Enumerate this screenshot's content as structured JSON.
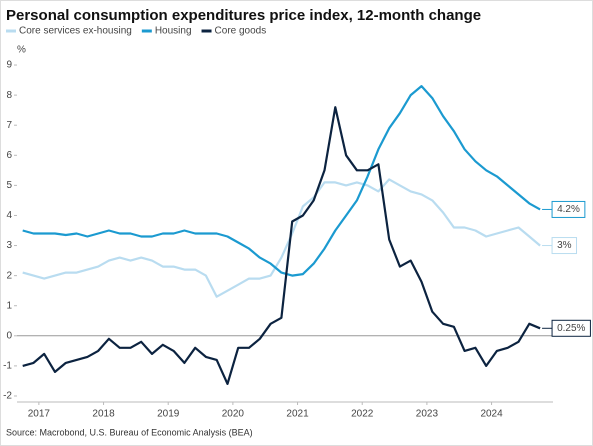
{
  "chart_data": {
    "type": "line",
    "title": "Personal consumption expenditures price index, 12-month change",
    "y_label": "%",
    "source": "Source: Macrobond, U.S. Bureau of Economic Analysis (BEA)",
    "x": [
      2016.75,
      2016.917,
      2017.083,
      2017.25,
      2017.417,
      2017.583,
      2017.75,
      2017.917,
      2018.083,
      2018.25,
      2018.417,
      2018.583,
      2018.75,
      2018.917,
      2019.083,
      2019.25,
      2019.417,
      2019.583,
      2019.75,
      2019.917,
      2020.083,
      2020.25,
      2020.417,
      2020.583,
      2020.75,
      2020.917,
      2021.083,
      2021.25,
      2021.417,
      2021.583,
      2021.75,
      2021.917,
      2022.083,
      2022.25,
      2022.417,
      2022.583,
      2022.75,
      2022.917,
      2023.083,
      2023.25,
      2023.417,
      2023.583,
      2023.75,
      2023.917,
      2024.083,
      2024.25,
      2024.417,
      2024.583,
      2024.75
    ],
    "series": [
      {
        "name": "Core services ex-housing",
        "color": "#b9dcf0",
        "values": [
          2.1,
          2.0,
          1.9,
          2.0,
          2.1,
          2.1,
          2.2,
          2.3,
          2.5,
          2.6,
          2.5,
          2.6,
          2.5,
          2.3,
          2.3,
          2.2,
          2.2,
          2.0,
          1.3,
          1.5,
          1.7,
          1.9,
          1.9,
          2.0,
          2.6,
          3.4,
          4.3,
          4.6,
          5.1,
          5.1,
          5.0,
          5.1,
          5.0,
          4.8,
          5.2,
          5.0,
          4.8,
          4.7,
          4.5,
          4.1,
          3.6,
          3.6,
          3.5,
          3.3,
          3.4,
          3.5,
          3.6,
          3.3,
          3
        ],
        "value_labels": [
          null,
          null,
          null,
          null,
          null,
          null,
          null,
          null,
          null,
          null,
          null,
          null,
          null,
          null,
          null,
          null,
          null,
          null,
          null,
          null,
          null,
          null,
          null,
          null,
          null,
          null,
          null,
          null,
          null,
          null,
          null,
          null,
          null,
          null,
          null,
          null,
          null,
          null,
          null,
          null,
          null,
          null,
          null,
          null,
          null,
          null,
          null,
          null,
          "3%"
        ]
      },
      {
        "name": "Housing",
        "color": "#1b9ad0",
        "values": [
          3.5,
          3.4,
          3.4,
          3.4,
          3.35,
          3.4,
          3.3,
          3.4,
          3.5,
          3.4,
          3.4,
          3.3,
          3.3,
          3.4,
          3.4,
          3.5,
          3.4,
          3.4,
          3.4,
          3.3,
          3.1,
          2.9,
          2.6,
          2.4,
          2.1,
          2.0,
          2.05,
          2.4,
          2.9,
          3.5,
          4.0,
          4.5,
          5.3,
          6.2,
          6.9,
          7.4,
          8.0,
          8.3,
          7.9,
          7.3,
          6.8,
          6.2,
          5.8,
          5.5,
          5.3,
          5.0,
          4.7,
          4.4,
          4.2
        ],
        "value_labels": [
          null,
          null,
          null,
          null,
          null,
          null,
          null,
          null,
          null,
          null,
          null,
          null,
          null,
          null,
          null,
          null,
          null,
          null,
          null,
          null,
          null,
          null,
          null,
          null,
          null,
          null,
          null,
          null,
          null,
          null,
          null,
          null,
          null,
          null,
          null,
          null,
          null,
          null,
          null,
          null,
          null,
          null,
          null,
          null,
          null,
          null,
          null,
          null,
          "4.2%"
        ]
      },
      {
        "name": "Core goods",
        "color": "#0c2340",
        "values": [
          -1.0,
          -0.9,
          -0.6,
          -1.2,
          -0.9,
          -0.8,
          -0.7,
          -0.5,
          -0.1,
          -0.4,
          -0.4,
          -0.2,
          -0.6,
          -0.3,
          -0.5,
          -0.9,
          -0.4,
          -0.7,
          -0.8,
          -1.6,
          -0.4,
          -0.4,
          -0.1,
          0.4,
          0.6,
          3.8,
          4.0,
          4.5,
          5.5,
          7.6,
          6.0,
          5.5,
          5.5,
          5.7,
          3.2,
          2.3,
          2.5,
          1.8,
          0.8,
          0.4,
          0.3,
          -0.5,
          -0.4,
          -1.0,
          -0.5,
          -0.4,
          -0.2,
          0.4,
          0.25
        ],
        "value_labels": [
          null,
          null,
          null,
          null,
          null,
          null,
          null,
          null,
          null,
          null,
          null,
          null,
          null,
          null,
          null,
          null,
          null,
          null,
          null,
          null,
          null,
          null,
          null,
          null,
          null,
          null,
          null,
          null,
          null,
          null,
          null,
          null,
          null,
          null,
          null,
          null,
          null,
          null,
          null,
          null,
          null,
          null,
          null,
          null,
          null,
          null,
          null,
          null,
          "0.25%"
        ]
      }
    ],
    "xlim": [
      2016.6,
      2024.95
    ],
    "xticks": [
      2017,
      2018,
      2019,
      2020,
      2021,
      2022,
      2023,
      2024
    ],
    "ylim": [
      -2.2,
      9.4
    ],
    "yticks": [
      9,
      8,
      7,
      6,
      5,
      4,
      3,
      2,
      1,
      0,
      -1,
      -2
    ],
    "zero_line": true
  }
}
